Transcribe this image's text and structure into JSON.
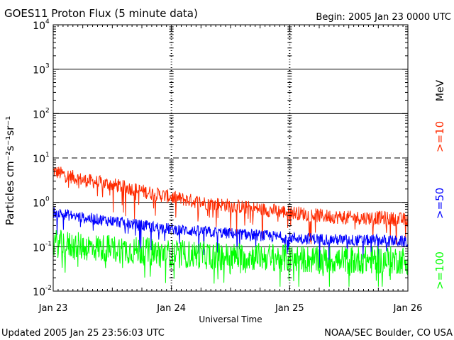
{
  "header": {
    "title": "GOES11 Proton Flux (5 minute data)",
    "begin": "Begin: 2005 Jan 23 0000 UTC"
  },
  "footer": {
    "updated": "Updated 2005 Jan 25 23:56:03 UTC",
    "credit": "NOAA/SEC Boulder, CO USA"
  },
  "chart_data": {
    "type": "line",
    "title": "GOES11 Proton Flux (5 minute data)",
    "xlabel": "Universal Time",
    "ylabel": "Particles cm⁻²s⁻¹sr⁻¹",
    "yscale": "log",
    "ylim": [
      0.01,
      10000
    ],
    "x_ticks": [
      "Jan 23",
      "Jan 24",
      "Jan 25",
      "Jan 26"
    ],
    "y_ticks": [
      {
        "base": "10",
        "exp": "-2"
      },
      {
        "base": "10",
        "exp": "-1"
      },
      {
        "base": "10",
        "exp": "0"
      },
      {
        "base": "10",
        "exp": "1"
      },
      {
        "base": "10",
        "exp": "2"
      },
      {
        "base": "10",
        "exp": "3"
      },
      {
        "base": "10",
        "exp": "4"
      }
    ],
    "units_label": "MeV",
    "grid": "solid lines at 1e-1, 1e0, 1e2, 1e3; dashed line at 1e1; dashed day separators",
    "series": [
      {
        "name": ">=10",
        "color": "#ff2a00",
        "x": [
          "2005-01-23 00:00",
          "2005-01-23 06:00",
          "2005-01-23 12:00",
          "2005-01-23 18:00",
          "2005-01-24 00:00",
          "2005-01-24 06:00",
          "2005-01-24 12:00",
          "2005-01-24 18:00",
          "2005-01-25 00:00",
          "2005-01-25 06:00",
          "2005-01-25 12:00",
          "2005-01-25 18:00",
          "2005-01-26 00:00"
        ],
        "values": [
          5.0,
          3.2,
          2.5,
          1.8,
          1.3,
          1.0,
          0.85,
          0.7,
          0.6,
          0.5,
          0.45,
          0.45,
          0.4
        ]
      },
      {
        "name": ">=50",
        "color": "#0000ff",
        "x": [
          "2005-01-23 00:00",
          "2005-01-23 06:00",
          "2005-01-23 12:00",
          "2005-01-23 18:00",
          "2005-01-24 00:00",
          "2005-01-24 06:00",
          "2005-01-24 12:00",
          "2005-01-24 18:00",
          "2005-01-25 00:00",
          "2005-01-25 06:00",
          "2005-01-25 12:00",
          "2005-01-25 18:00",
          "2005-01-26 00:00"
        ],
        "values": [
          0.6,
          0.45,
          0.38,
          0.3,
          0.25,
          0.22,
          0.2,
          0.18,
          0.16,
          0.15,
          0.14,
          0.14,
          0.13
        ]
      },
      {
        "name": ">=100",
        "color": "#00ff00",
        "x": [
          "2005-01-23 00:00",
          "2005-01-23 06:00",
          "2005-01-23 12:00",
          "2005-01-23 18:00",
          "2005-01-24 00:00",
          "2005-01-24 06:00",
          "2005-01-24 12:00",
          "2005-01-24 18:00",
          "2005-01-25 00:00",
          "2005-01-25 06:00",
          "2005-01-25 12:00",
          "2005-01-25 18:00",
          "2005-01-26 00:00"
        ],
        "values": [
          0.12,
          0.1,
          0.09,
          0.08,
          0.07,
          0.065,
          0.06,
          0.06,
          0.055,
          0.05,
          0.05,
          0.05,
          0.05
        ]
      }
    ]
  }
}
